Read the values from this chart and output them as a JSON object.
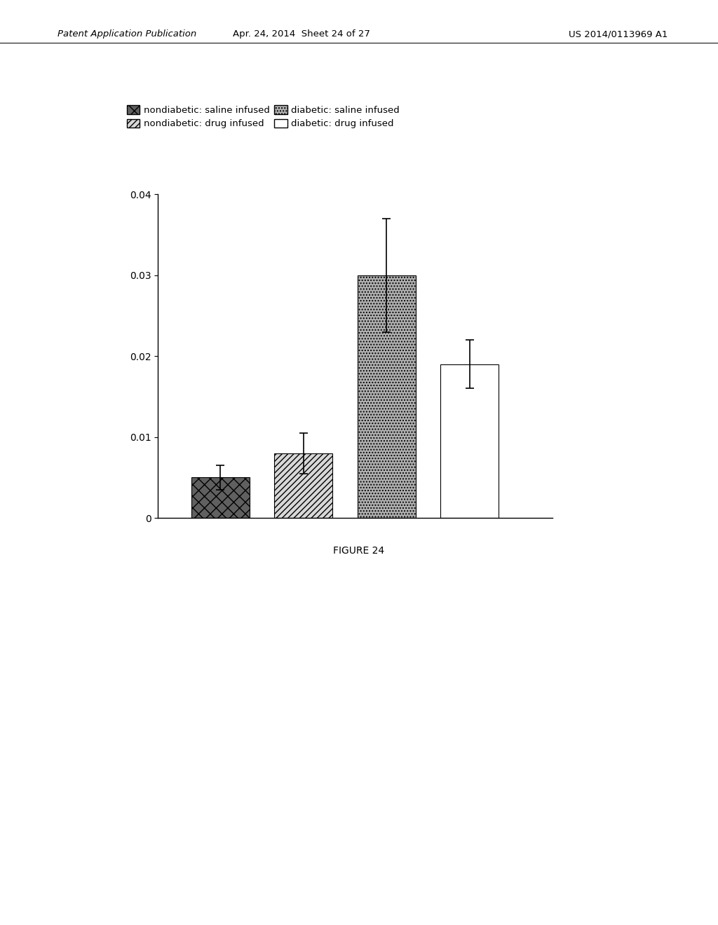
{
  "figure_label": "FIGURE 24",
  "bar_values": [
    0.005,
    0.008,
    0.03,
    0.019
  ],
  "bar_errors": [
    0.0015,
    0.0025,
    0.007,
    0.003
  ],
  "bar_labels": [
    "nondiabetic: saline infused",
    "nondiabetic: drug infused",
    "diabetic: saline infused",
    "diabetic: drug infused"
  ],
  "ylim": [
    0,
    0.04
  ],
  "yticks": [
    0,
    0.01,
    0.02,
    0.03,
    0.04
  ],
  "bar_width": 0.28,
  "bar_positions": [
    0.5,
    0.9,
    1.3,
    1.7
  ],
  "background_color": "#ffffff",
  "header_left": "Patent Application Publication",
  "header_center": "Apr. 24, 2014  Sheet 24 of 27",
  "header_right": "US 2014/0113969 A1"
}
